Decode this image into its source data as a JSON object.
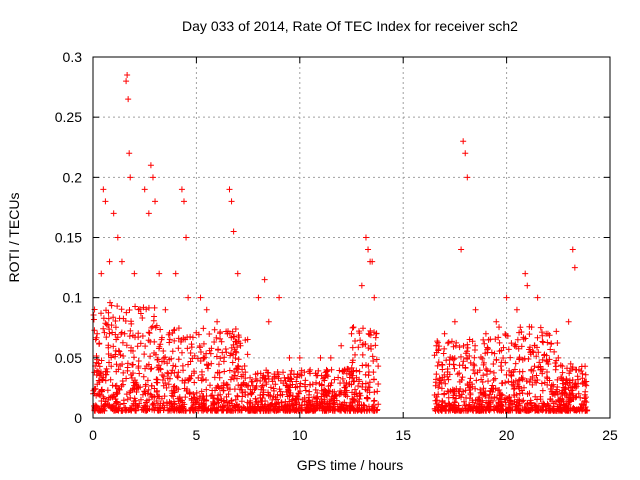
{
  "chart_data": {
    "type": "scatter",
    "title": "Day 033 of 2014, Rate Of TEC Index for receiver sch2",
    "xlabel": "GPS time / hours",
    "ylabel": "ROTI / TECUs",
    "xlim": [
      0,
      25
    ],
    "ylim": [
      0,
      0.3
    ],
    "xticks": [
      "0",
      "5",
      "10",
      "15",
      "20",
      "25"
    ],
    "yticks": [
      "0",
      "0.05",
      "0.1",
      "0.15",
      "0.2",
      "0.25",
      "0.3"
    ],
    "grid": true,
    "marker": "+",
    "color": "#ff0000",
    "data_gap_hours": [
      13.8,
      16.5
    ],
    "series": [
      {
        "x": [
          0.2,
          0.4,
          0.5,
          0.6,
          0.8,
          1.0,
          1.2,
          1.4,
          1.6,
          1.65,
          1.7,
          1.75,
          1.8,
          2.0,
          2.5,
          2.7,
          2.8,
          2.9,
          3.0,
          3.2,
          3.5,
          4.0,
          4.3,
          4.4,
          4.5,
          4.6,
          5.2,
          5.5,
          6.0,
          6.5,
          6.6,
          6.7,
          6.8,
          7.0,
          8.0,
          8.3,
          8.5,
          9.0,
          9.5,
          10.0,
          10.5,
          11.0,
          11.5,
          12.0,
          12.5,
          13.0,
          13.2,
          13.3,
          13.4,
          13.5,
          13.6,
          13.7,
          16.6,
          17.0,
          17.5,
          17.8,
          17.9,
          18.0,
          18.1,
          18.5,
          19.0,
          19.5,
          20.0,
          20.5,
          20.9,
          21.0,
          21.5,
          22.0,
          22.5,
          23.0,
          23.2,
          23.3,
          23.5,
          23.8
        ],
        "y": [
          0.07,
          0.12,
          0.19,
          0.18,
          0.13,
          0.17,
          0.15,
          0.13,
          0.28,
          0.285,
          0.265,
          0.22,
          0.2,
          0.12,
          0.19,
          0.17,
          0.21,
          0.2,
          0.18,
          0.12,
          0.09,
          0.12,
          0.19,
          0.18,
          0.15,
          0.1,
          0.1,
          0.09,
          0.08,
          0.07,
          0.19,
          0.18,
          0.155,
          0.12,
          0.1,
          0.115,
          0.08,
          0.1,
          0.05,
          0.05,
          0.04,
          0.05,
          0.05,
          0.06,
          0.07,
          0.11,
          0.15,
          0.14,
          0.13,
          0.13,
          0.1,
          0.07,
          0.06,
          0.07,
          0.08,
          0.14,
          0.23,
          0.22,
          0.2,
          0.09,
          0.07,
          0.08,
          0.1,
          0.09,
          0.12,
          0.11,
          0.1,
          0.07,
          0.05,
          0.08,
          0.14,
          0.125,
          0.04,
          0.03
        ]
      }
    ]
  }
}
